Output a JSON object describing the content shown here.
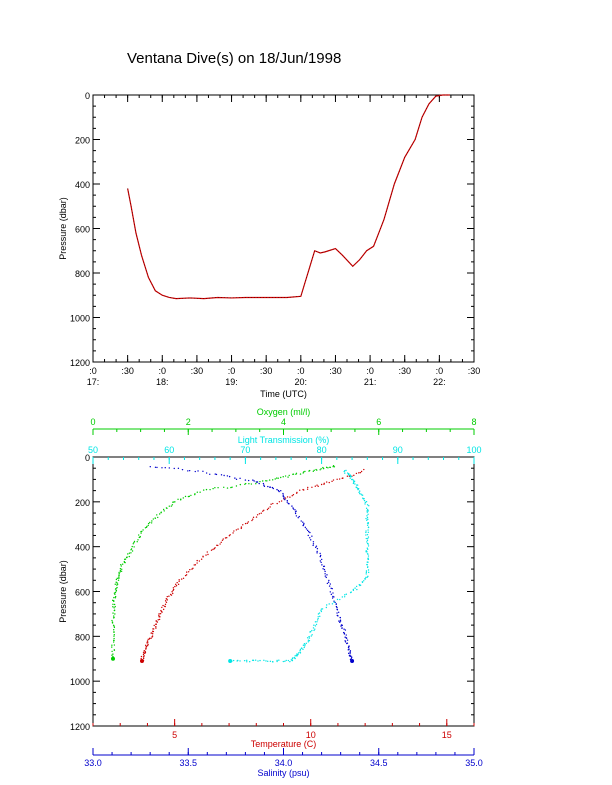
{
  "title": "Ventana Dive(s) on 18/Jun/1998",
  "chart_data": [
    {
      "type": "line",
      "xlabel": "Time (UTC)",
      "ylabel": "Pressure (dbar)",
      "ylim": [
        1200,
        0
      ],
      "y_ticks": [
        "0",
        "200",
        "400",
        "600",
        "800",
        "1000",
        "1200"
      ],
      "x_ticks_top": [
        ":0",
        ":30",
        ":0",
        ":30",
        ":0",
        ":30",
        ":0",
        ":30",
        ":0",
        ":30",
        ":0",
        ":30"
      ],
      "x_ticks_hours": [
        "17:",
        "18:",
        "19:",
        "20:",
        "21:",
        "22:"
      ],
      "x_ticks_hour_positions": [
        0,
        1,
        2,
        3,
        4,
        5
      ],
      "colors": {
        "line": "#cc0000",
        "marker": "#000000"
      },
      "series": [
        {
          "x": [
            0.5,
            0.55,
            0.62,
            0.7,
            0.8,
            0.9,
            1.0,
            1.1,
            1.2,
            1.4,
            1.6,
            1.8,
            2.0,
            2.2,
            2.4,
            2.6,
            2.8,
            3.0,
            3.2,
            3.28,
            3.35,
            3.5,
            3.6,
            3.75,
            3.85,
            3.95,
            4.05,
            4.2,
            4.35,
            4.5,
            4.65,
            4.75,
            4.85,
            4.95,
            5.05,
            5.15
          ],
          "y": [
            420,
            500,
            620,
            720,
            820,
            880,
            900,
            910,
            915,
            912,
            915,
            910,
            912,
            910,
            910,
            910,
            910,
            905,
            700,
            710,
            705,
            690,
            720,
            770,
            740,
            700,
            680,
            560,
            400,
            280,
            200,
            100,
            40,
            5,
            -100,
            -100
          ]
        }
      ]
    },
    {
      "type": "scatter",
      "ylabel": "Pressure (dbar)",
      "ylim": [
        1200,
        0
      ],
      "y_ticks": [
        "0",
        "200",
        "400",
        "600",
        "800",
        "1000",
        "1200"
      ],
      "axes": {
        "oxygen": {
          "label": "Oxygen (ml/l)",
          "range": [
            0,
            8
          ],
          "ticks": [
            "0",
            "2",
            "4",
            "6",
            "8"
          ],
          "color": "#00cc00"
        },
        "transmission": {
          "label": "Light Transmission (%)",
          "range": [
            50,
            100
          ],
          "ticks": [
            "50",
            "60",
            "70",
            "80",
            "90",
            "100"
          ],
          "color": "#00e5e5"
        },
        "temperature": {
          "label": "Temperature (C)",
          "range": [
            2,
            16
          ],
          "ticks": [
            "5",
            "10",
            "15"
          ],
          "color": "#cc0000"
        },
        "salinity": {
          "label": "Salinity (psu)",
          "range": [
            33.0,
            35.0
          ],
          "ticks": [
            "33.0",
            "33.5",
            "34.0",
            "34.5",
            "35.0"
          ],
          "color": "#0000cc"
        }
      },
      "series": [
        {
          "name": "Oxygen",
          "color": "#00cc00",
          "x_axis": "oxygen",
          "points": [
            [
              5.1,
              40
            ],
            [
              4.6,
              60
            ],
            [
              4.0,
              90
            ],
            [
              3.3,
              120
            ],
            [
              2.3,
              150
            ],
            [
              1.7,
              200
            ],
            [
              1.3,
              270
            ],
            [
              1.0,
              340
            ],
            [
              0.8,
              420
            ],
            [
              0.6,
              490
            ],
            [
              0.5,
              550
            ],
            [
              0.45,
              620
            ],
            [
              0.43,
              700
            ],
            [
              0.42,
              800
            ],
            [
              0.42,
              900
            ]
          ]
        },
        {
          "name": "Temperature",
          "color": "#cc0000",
          "x_axis": "temperature",
          "points": [
            [
              12.0,
              60
            ],
            [
              10.8,
              110
            ],
            [
              9.6,
              150
            ],
            [
              8.5,
              220
            ],
            [
              7.6,
              300
            ],
            [
              6.7,
              380
            ],
            [
              5.9,
              460
            ],
            [
              5.2,
              550
            ],
            [
              4.8,
              620
            ],
            [
              4.5,
              690
            ],
            [
              4.3,
              750
            ],
            [
              4.1,
              810
            ],
            [
              3.9,
              860
            ],
            [
              3.8,
              910
            ]
          ]
        },
        {
          "name": "Salinity",
          "color": "#0000cc",
          "x_axis": "salinity",
          "points": [
            [
              33.3,
              40
            ],
            [
              33.6,
              70
            ],
            [
              33.85,
              110
            ],
            [
              33.98,
              150
            ],
            [
              34.05,
              230
            ],
            [
              34.12,
              320
            ],
            [
              34.18,
              420
            ],
            [
              34.22,
              520
            ],
            [
              34.26,
              620
            ],
            [
              34.29,
              710
            ],
            [
              34.32,
              780
            ],
            [
              34.34,
              850
            ],
            [
              34.36,
              910
            ]
          ]
        },
        {
          "name": "Light Transmission",
          "color": "#00e5e5",
          "x_axis": "transmission",
          "points": [
            [
              83,
              60
            ],
            [
              84,
              100
            ],
            [
              85,
              150
            ],
            [
              86,
              220
            ],
            [
              86,
              300
            ],
            [
              86,
              380
            ],
            [
              86,
              460
            ],
            [
              86,
              540
            ],
            [
              84,
              600
            ],
            [
              80,
              680
            ],
            [
              79,
              760
            ],
            [
              78,
              830
            ],
            [
              77,
              880
            ],
            [
              76,
              910
            ],
            [
              72,
              910
            ],
            [
              68,
              910
            ]
          ]
        }
      ]
    }
  ]
}
